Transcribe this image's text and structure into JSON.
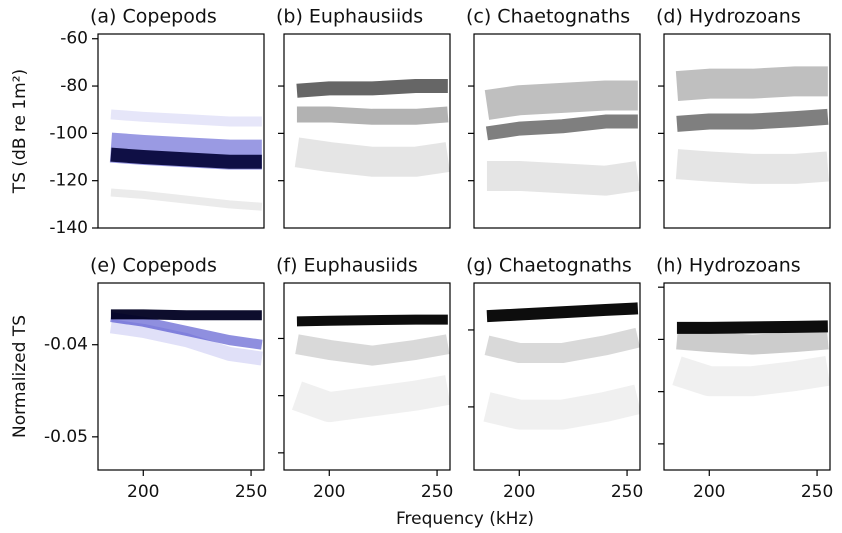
{
  "xlabel": "Frequency (kHz)",
  "chart_data": [
    {
      "type": "line",
      "title": "(a) Copepods",
      "ylabel": "TS (dB re 1m²)",
      "ytick_labels": true,
      "x": [
        185,
        200,
        220,
        240,
        255
      ],
      "xlim": [
        179,
        256
      ],
      "ylim": [
        -140,
        -58
      ],
      "yticks": [
        -140,
        -120,
        -100,
        -80,
        -60
      ],
      "series": [
        {
          "color": "#2020c0",
          "opacity": 0.45,
          "line_width": 30,
          "values": [
            -106,
            -107,
            -108,
            -109,
            -109
          ]
        },
        {
          "color": "#8080e0",
          "opacity": 0.2,
          "line_width": 10,
          "values": [
            -92,
            -93,
            -94,
            -95,
            -95
          ]
        },
        {
          "color": "#999999",
          "opacity": 0.2,
          "line_width": 8,
          "values": [
            -125,
            -126,
            -128,
            -130,
            -131
          ]
        },
        {
          "color": "#000033",
          "opacity": 0.9,
          "line_width": 14,
          "values": [
            -109,
            -110,
            -111,
            -112,
            -112
          ]
        }
      ]
    },
    {
      "type": "line",
      "title": "(b) Euphausiids",
      "ytick_labels": false,
      "x": [
        185,
        200,
        220,
        240,
        255
      ],
      "xlim": [
        179,
        256
      ],
      "ylim": [
        -140,
        -58
      ],
      "yticks": [
        -120,
        -100,
        -80
      ],
      "series": [
        {
          "color": "#000000",
          "opacity": 0.1,
          "line_width": 30,
          "values": [
            -108,
            -110,
            -112,
            -112,
            -110
          ]
        },
        {
          "color": "#000000",
          "opacity": 0.3,
          "line_width": 16,
          "values": [
            -92,
            -92,
            -93,
            -93,
            -92
          ]
        },
        {
          "color": "#000000",
          "opacity": 0.6,
          "line_width": 14,
          "values": [
            -82,
            -81,
            -81,
            -80,
            -80
          ]
        }
      ]
    },
    {
      "type": "line",
      "title": "(c) Chaetognaths",
      "ytick_labels": false,
      "x": [
        185,
        200,
        220,
        240,
        255
      ],
      "xlim": [
        179,
        256
      ],
      "ylim": [
        -140,
        -58
      ],
      "yticks": [
        -120,
        -100,
        -80
      ],
      "series": [
        {
          "color": "#000000",
          "opacity": 0.1,
          "line_width": 30,
          "values": [
            -118,
            -118,
            -119,
            -120,
            -118
          ]
        },
        {
          "color": "#000000",
          "opacity": 0.25,
          "line_width": 30,
          "values": [
            -88,
            -86,
            -85,
            -84,
            -84
          ]
        },
        {
          "color": "#000000",
          "opacity": 0.5,
          "line_width": 14,
          "values": [
            -100,
            -98,
            -97,
            -95,
            -95
          ]
        }
      ]
    },
    {
      "type": "line",
      "title": "(d) Hydrozoans",
      "ytick_labels": false,
      "x": [
        185,
        200,
        220,
        240,
        255
      ],
      "xlim": [
        179,
        256
      ],
      "ylim": [
        -140,
        -58
      ],
      "yticks": [
        -120,
        -100,
        -80
      ],
      "series": [
        {
          "color": "#000000",
          "opacity": 0.1,
          "line_width": 30,
          "values": [
            -113,
            -114,
            -115,
            -115,
            -114
          ]
        },
        {
          "color": "#000000",
          "opacity": 0.25,
          "line_width": 30,
          "values": [
            -80,
            -79,
            -79,
            -78,
            -78
          ]
        },
        {
          "color": "#000000",
          "opacity": 0.5,
          "line_width": 16,
          "values": [
            -96,
            -95,
            -95,
            -94,
            -93
          ]
        }
      ]
    },
    {
      "type": "line",
      "title": "(e) Copepods",
      "ylabel": "Normalized TS",
      "ytick_labels": true,
      "x": [
        185,
        200,
        220,
        240,
        255
      ],
      "xlim": [
        179,
        256
      ],
      "ylim": [
        -0.0536,
        -0.0333
      ],
      "yticks": [
        -0.05,
        -0.04
      ],
      "xticks": [
        200,
        250
      ],
      "series": [
        {
          "color": "#3030d0",
          "opacity": 0.15,
          "line_width": 14,
          "values": [
            -0.038,
            -0.0385,
            -0.0395,
            -0.041,
            -0.0415
          ]
        },
        {
          "color": "#2020c0",
          "opacity": 0.5,
          "line_width": 10,
          "values": [
            -0.037,
            -0.0375,
            -0.0385,
            -0.0395,
            -0.04
          ]
        },
        {
          "color": "#000022",
          "opacity": 0.95,
          "line_width": 10,
          "values": [
            -0.0367,
            -0.0367,
            -0.0368,
            -0.0368,
            -0.0368
          ]
        }
      ]
    },
    {
      "type": "line",
      "title": "(f) Euphausiids",
      "ytick_labels": false,
      "x": [
        185,
        200,
        220,
        240,
        255
      ],
      "xlim": [
        179,
        256
      ],
      "ylim": [
        -0.063,
        -0.0303
      ],
      "yticks": [
        -0.06,
        -0.05,
        -0.04
      ],
      "xticks": [
        200,
        250
      ],
      "series": [
        {
          "color": "#000000",
          "opacity": 0.06,
          "line_width": 30,
          "values": [
            -0.05,
            -0.052,
            -0.051,
            -0.05,
            -0.049
          ]
        },
        {
          "color": "#000000",
          "opacity": 0.15,
          "line_width": 20,
          "values": [
            -0.041,
            -0.042,
            -0.043,
            -0.042,
            -0.041
          ]
        },
        {
          "color": "#000000",
          "opacity": 0.95,
          "line_width": 10,
          "values": [
            -0.037,
            -0.0369,
            -0.0368,
            -0.0367,
            -0.0367
          ]
        }
      ]
    },
    {
      "type": "line",
      "title": "(g) Chaetognaths",
      "ytick_labels": false,
      "x": [
        185,
        200,
        220,
        240,
        255
      ],
      "xlim": [
        179,
        256
      ],
      "ylim": [
        -0.0582,
        -0.0339
      ],
      "yticks": [
        -0.05,
        -0.04
      ],
      "xticks": [
        200,
        250
      ],
      "series": [
        {
          "color": "#000000",
          "opacity": 0.06,
          "line_width": 30,
          "values": [
            -0.05,
            -0.051,
            -0.051,
            -0.05,
            -0.049
          ]
        },
        {
          "color": "#000000",
          "opacity": 0.15,
          "line_width": 20,
          "values": [
            -0.042,
            -0.043,
            -0.043,
            -0.042,
            -0.041
          ]
        },
        {
          "color": "#000000",
          "opacity": 0.95,
          "line_width": 12,
          "values": [
            -0.0382,
            -0.038,
            -0.0377,
            -0.0374,
            -0.0372
          ]
        }
      ]
    },
    {
      "type": "line",
      "title": "(h) Hydrozoans",
      "ytick_labels": false,
      "x": [
        185,
        200,
        220,
        240,
        255
      ],
      "xlim": [
        179,
        256
      ],
      "ylim": [
        -0.065,
        -0.0292
      ],
      "yticks": [
        -0.06,
        -0.05,
        -0.04,
        -0.03
      ],
      "xticks": [
        200,
        250
      ],
      "series": [
        {
          "color": "#000000",
          "opacity": 0.06,
          "line_width": 30,
          "values": [
            -0.046,
            -0.048,
            -0.048,
            -0.047,
            -0.046
          ]
        },
        {
          "color": "#000000",
          "opacity": 0.2,
          "line_width": 20,
          "values": [
            -0.04,
            -0.0405,
            -0.041,
            -0.0405,
            -0.04
          ]
        },
        {
          "color": "#000000",
          "opacity": 0.95,
          "line_width": 12,
          "values": [
            -0.0378,
            -0.0378,
            -0.0377,
            -0.0376,
            -0.0375
          ]
        }
      ]
    }
  ]
}
